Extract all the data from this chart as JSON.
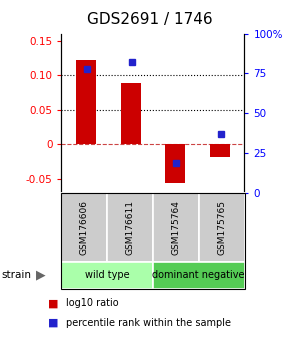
{
  "title": "GDS2691 / 1746",
  "samples": [
    "GSM176606",
    "GSM176611",
    "GSM175764",
    "GSM175765"
  ],
  "log10_ratio": [
    0.122,
    0.089,
    -0.056,
    -0.018
  ],
  "percentile_rank": [
    0.78,
    0.82,
    0.19,
    0.37
  ],
  "bar_color": "#cc0000",
  "dot_color": "#2222cc",
  "ylim_left": [
    -0.07,
    0.16
  ],
  "ylim_right": [
    -0.07,
    1.12
  ],
  "yticks_left": [
    -0.05,
    0,
    0.05,
    0.1,
    0.15
  ],
  "ytick_labels_left": [
    "-0.05",
    "0",
    "0.05",
    "0.10",
    "0.15"
  ],
  "yticks_right": [
    0,
    0.25,
    0.5,
    0.75,
    1.0
  ],
  "ytick_labels_right": [
    "0",
    "25",
    "50",
    "75",
    "100%"
  ],
  "hlines_dotted": [
    0.05,
    0.1
  ],
  "hline_dash": 0,
  "groups": [
    {
      "label": "wild type",
      "indices": [
        0,
        1
      ],
      "color": "#aaffaa"
    },
    {
      "label": "dominant negative",
      "indices": [
        2,
        3
      ],
      "color": "#55cc55"
    }
  ],
  "strain_label": "strain",
  "legend_ratio_label": "log10 ratio",
  "legend_pct_label": "percentile rank within the sample",
  "bar_width": 0.45,
  "title_fontsize": 11,
  "tick_fontsize": 7.5
}
